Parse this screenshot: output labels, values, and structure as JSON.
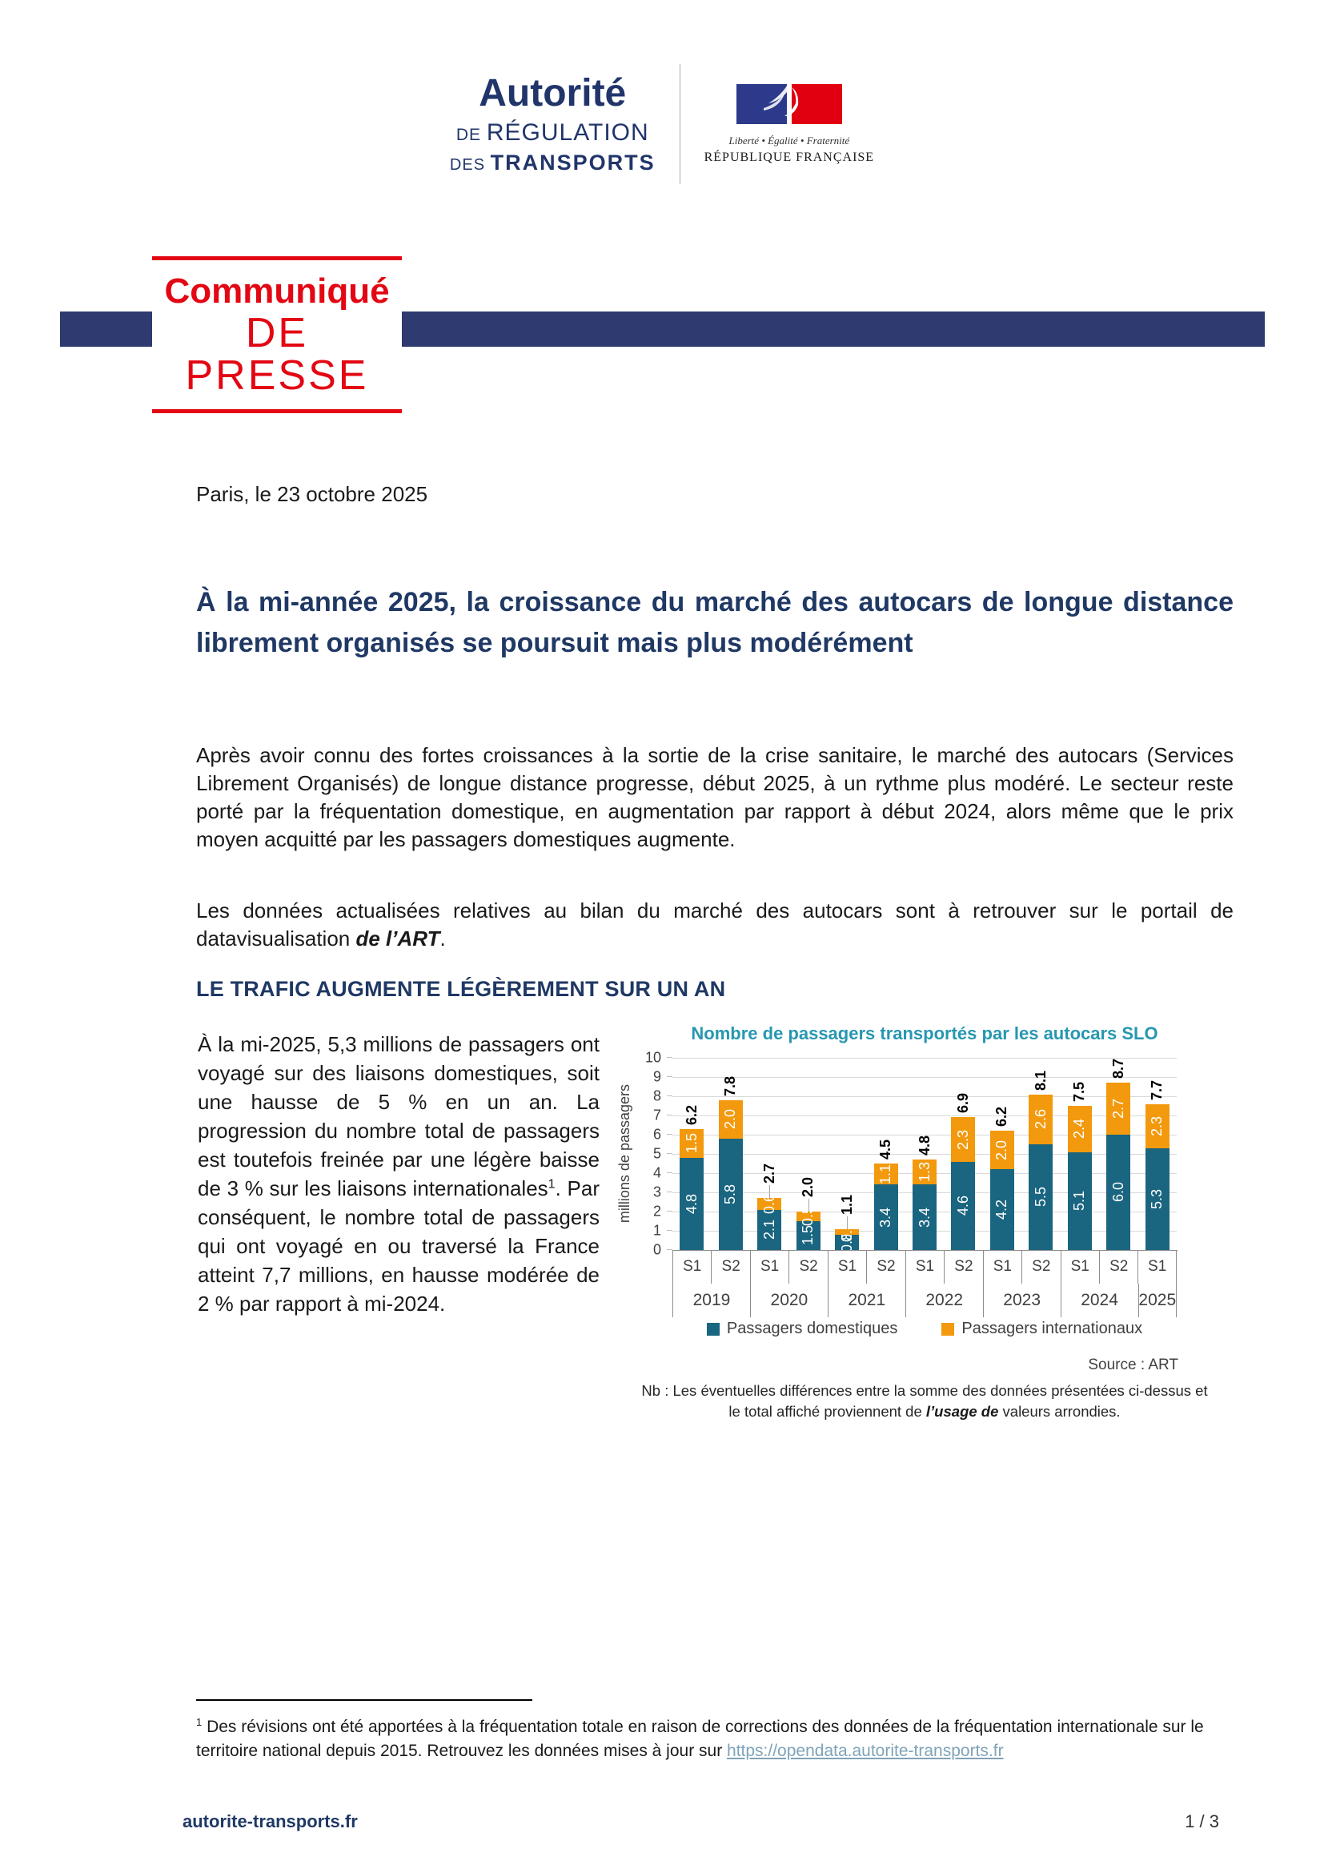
{
  "logo": {
    "art_line1": "Autorité",
    "art_line2_small": "DE ",
    "art_line2": "RÉGULATION",
    "art_line3_small": "DES ",
    "art_line3": "TRANSPORTS",
    "republique": {
      "motto": "Liberté • Égalité • Fraternité",
      "name": "RÉPUBLIQUE FRANÇAISE"
    }
  },
  "banner": {
    "line1": "Communiqué",
    "line2": "DE PRESSE"
  },
  "date_line": "Paris, le 23 octobre 2025",
  "main_title": "À la mi-année 2025, la croissance du marché des autocars de longue distance librement organisés se poursuit mais plus modérément",
  "intro": {
    "p1": "Après avoir connu des fortes croissances à la sortie de la crise sanitaire, le marché des autocars (Services Librement Organisés) de longue distance progresse, début 2025, à un rythme plus modéré. Le secteur reste porté par la fréquentation domestique, en augmentation par rapport à début 2024, alors même que le prix moyen acquitté par les passagers domestiques augmente.",
    "p2_before": "Les données actualisées relatives au bilan du marché des autocars sont à retrouver sur le portail de datavisualisation ",
    "p2_link": "de l’ART",
    "p2_after": "."
  },
  "section1": {
    "heading": "LE TRAFIC AUGMENTE LÉGÈREMENT SUR UN AN",
    "body_before_sup": "À la mi-2025, 5,3 millions de passagers ont voyagé sur des liaisons domestiques, soit une hausse de 5 % en un an. La progression du nombre total de passagers est toutefois freinée par une légère baisse de 3 % sur les liaisons internationales",
    "sup_marker": "1",
    "body_after_sup": ". Par conséquent, le nombre total de passagers qui ont voyagé en ou traversé la France atteint 7,7 millions, en hausse modérée de 2 % par rapport à mi-2024."
  },
  "chart_data": {
    "type": "bar",
    "stacked": true,
    "title": "Nombre de passagers transportés par les autocars SLO",
    "ylabel": "millions de passagers",
    "ylim": [
      0,
      10
    ],
    "grid": true,
    "legend_position": "bottom",
    "categories": [
      {
        "year": "2019",
        "sem": "S1"
      },
      {
        "year": "2019",
        "sem": "S2"
      },
      {
        "year": "2020",
        "sem": "S1"
      },
      {
        "year": "2020",
        "sem": "S2"
      },
      {
        "year": "2021",
        "sem": "S1"
      },
      {
        "year": "2021",
        "sem": "S2"
      },
      {
        "year": "2022",
        "sem": "S1"
      },
      {
        "year": "2022",
        "sem": "S2"
      },
      {
        "year": "2023",
        "sem": "S1"
      },
      {
        "year": "2023",
        "sem": "S2"
      },
      {
        "year": "2024",
        "sem": "S1"
      },
      {
        "year": "2024",
        "sem": "S2"
      },
      {
        "year": "2025",
        "sem": "S1"
      }
    ],
    "series": [
      {
        "name": "Passagers domestiques",
        "color": "#1A6580",
        "labels": [
          "4.8",
          "5.8",
          "2.1",
          "1.5",
          "0.8",
          "3.4",
          "3.4",
          "4.6",
          "4.2",
          "5.5",
          "5.1",
          "6.0",
          "5.3"
        ]
      },
      {
        "name": "Passagers internationaux",
        "color": "#F2990D",
        "labels": [
          "1.5",
          "2.0",
          "0.6",
          "0.5",
          "0.3",
          "1.1",
          "1.3",
          "2.3",
          "2.0",
          "2.6",
          "2.4",
          "2.7",
          "2.3"
        ]
      }
    ],
    "totals": [
      "6.2",
      "7.8",
      "2.7",
      "2.0",
      "1.1",
      "4.5",
      "4.8",
      "6.9",
      "6.2",
      "8.1",
      "7.5",
      "8.7",
      "7.7"
    ],
    "source": "Source : ART",
    "note_before": "Nb : Les éventuelles différences entre la somme des données présentées ci-dessus et le total affiché proviennent de ",
    "note_em": "l’usage de",
    "note_after": " valeurs arrondies."
  },
  "footnote": {
    "marker": "1",
    "text_before": " Des révisions ont été apportées à la fréquentation totale en raison de corrections des données de la fréquentation internationale sur le territoire national depuis 2015. Retrouvez les données mises à jour sur ",
    "link": "https://opendata.autorite-transports.fr"
  },
  "footer": {
    "site": "autorite-transports.fr",
    "page_number": "1 / 3"
  },
  "colors": {
    "navy": "#1F3864",
    "banner_blue": "#2E3A70",
    "red": "#E30613",
    "chart_title": "#2697B0",
    "domestic": "#1A6580",
    "international": "#F2990D"
  }
}
